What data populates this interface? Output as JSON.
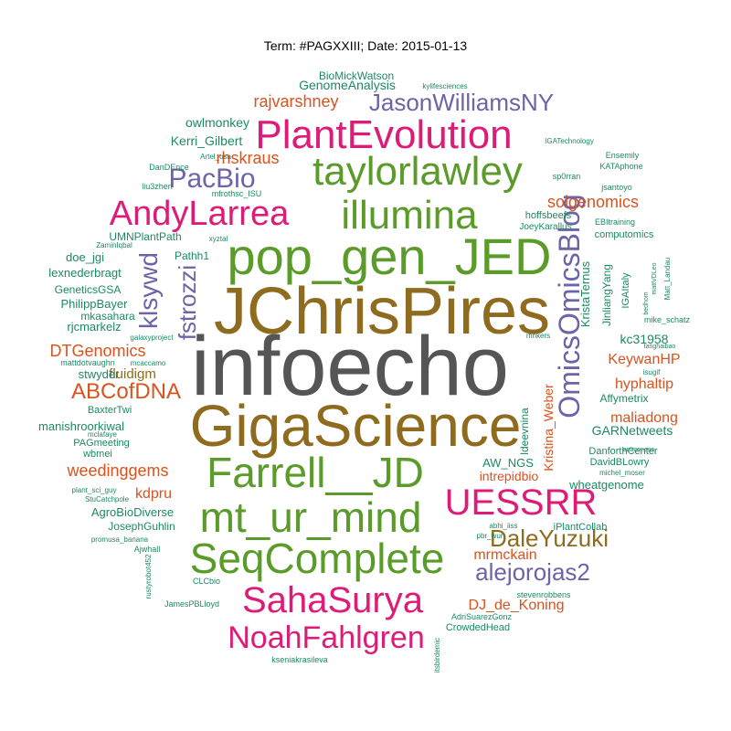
{
  "title": "Term: #PAGXXIII; Date: 2015-01-13",
  "colors": {
    "grey": "#555555",
    "brown": "#8e6b1f",
    "green": "#5a9b2a",
    "pink": "#dd1c77",
    "purple": "#6e62a8",
    "orange": "#d9531e",
    "teal": "#1b8a63"
  },
  "words": [
    {
      "text": "infoecho",
      "color": "grey"
    },
    {
      "text": "JChrisPires",
      "color": "brown"
    },
    {
      "text": "GigaScience",
      "color": "brown"
    },
    {
      "text": "pop_gen_JED",
      "color": "green"
    },
    {
      "text": "Farrell__JD",
      "color": "green"
    },
    {
      "text": "mt_ur_mind",
      "color": "green"
    },
    {
      "text": "SeqComplete",
      "color": "green"
    },
    {
      "text": "taylorlawley",
      "color": "green"
    },
    {
      "text": "illumina",
      "color": "green"
    },
    {
      "text": "PlantEvolution",
      "color": "pink"
    },
    {
      "text": "AndyLarrea",
      "color": "pink"
    },
    {
      "text": "SahaSurya",
      "color": "pink"
    },
    {
      "text": "NoahFahlgren",
      "color": "pink"
    },
    {
      "text": "UESSRR",
      "color": "pink"
    },
    {
      "text": "OmicsOmicsBlog",
      "color": "purple"
    },
    {
      "text": "JasonWilliamsNY",
      "color": "purple"
    },
    {
      "text": "PacBio",
      "color": "purple"
    },
    {
      "text": "klsywd",
      "color": "purple"
    },
    {
      "text": "fstrozzi",
      "color": "purple"
    },
    {
      "text": "alejorojas2",
      "color": "purple"
    },
    {
      "text": "DaleYuzuki",
      "color": "brown"
    },
    {
      "text": "ABCofDNA",
      "color": "orange"
    },
    {
      "text": "DTGenomics",
      "color": "orange"
    },
    {
      "text": "rhskraus",
      "color": "orange"
    },
    {
      "text": "rajvarshney",
      "color": "orange"
    },
    {
      "text": "solgenomics",
      "color": "orange"
    },
    {
      "text": "weedinggems",
      "color": "orange"
    },
    {
      "text": "KeywanHP",
      "color": "orange"
    },
    {
      "text": "hyphaltip",
      "color": "orange"
    },
    {
      "text": "maliadong",
      "color": "orange"
    },
    {
      "text": "mrmckain",
      "color": "orange"
    },
    {
      "text": "DJ_de_Koning",
      "color": "orange"
    },
    {
      "text": "intrepidbio",
      "color": "orange"
    },
    {
      "text": "kdpru",
      "color": "orange"
    },
    {
      "text": "fluidigm",
      "color": "brown"
    },
    {
      "text": "Kristina_Weber",
      "color": "orange"
    },
    {
      "text": "owlmonkey",
      "color": "teal"
    },
    {
      "text": "Kerri_Gilbert",
      "color": "teal"
    },
    {
      "text": "GenomeAnalysis",
      "color": "teal"
    },
    {
      "text": "BioMickWatson",
      "color": "teal"
    },
    {
      "text": "kylifesciences",
      "color": "teal"
    },
    {
      "text": "UMNPlantPath",
      "color": "teal"
    },
    {
      "text": "lexnederbragt",
      "color": "teal"
    },
    {
      "text": "doe_jgi",
      "color": "teal"
    },
    {
      "text": "GeneticsGSA",
      "color": "teal"
    },
    {
      "text": "PhilippBayer",
      "color": "teal"
    },
    {
      "text": "mkasahara",
      "color": "teal"
    },
    {
      "text": "rjcmarkelz",
      "color": "teal"
    },
    {
      "text": "stwyder",
      "color": "teal"
    },
    {
      "text": "BaxterTwi",
      "color": "teal"
    },
    {
      "text": "manishroorkiwal",
      "color": "teal"
    },
    {
      "text": "PAGmeeting",
      "color": "teal"
    },
    {
      "text": "wbmei",
      "color": "teal"
    },
    {
      "text": "AgroBioDiverse",
      "color": "teal"
    },
    {
      "text": "JosephGuhlin",
      "color": "teal"
    },
    {
      "text": "Pathh1",
      "color": "teal"
    },
    {
      "text": "AW_NGS",
      "color": "teal"
    },
    {
      "text": "kc31958",
      "color": "teal"
    },
    {
      "text": "Affymetrix",
      "color": "teal"
    },
    {
      "text": "GARNetweets",
      "color": "teal"
    },
    {
      "text": "wheatgenome",
      "color": "teal"
    },
    {
      "text": "DanforthCenter",
      "color": "teal"
    },
    {
      "text": "DavidBLowry",
      "color": "teal"
    },
    {
      "text": "KristaTernus",
      "color": "teal"
    },
    {
      "text": "JinliangYang",
      "color": "teal"
    },
    {
      "text": "IGAItaly",
      "color": "teal"
    },
    {
      "text": "computomics",
      "color": "teal"
    },
    {
      "text": "hoffsbeefs",
      "color": "teal"
    },
    {
      "text": "JoeyKarallus",
      "color": "teal"
    },
    {
      "text": "EBItraining",
      "color": "teal"
    },
    {
      "text": "Ensemily",
      "color": "teal"
    },
    {
      "text": "KATAphone",
      "color": "teal"
    },
    {
      "text": "sp0rran",
      "color": "teal"
    },
    {
      "text": "jsantoyo",
      "color": "teal"
    },
    {
      "text": "IGATechnology",
      "color": "teal"
    },
    {
      "text": "DanDEnce",
      "color": "teal"
    },
    {
      "text": "mfrothsc_ISU",
      "color": "teal"
    },
    {
      "text": "liu3zhen",
      "color": "teal"
    },
    {
      "text": "Artel_usa",
      "color": "teal"
    },
    {
      "text": "xyztal",
      "color": "teal"
    },
    {
      "text": "ZaminIqbal",
      "color": "teal"
    },
    {
      "text": "galaxyproject",
      "color": "teal"
    },
    {
      "text": "mattdotvaughn",
      "color": "teal"
    },
    {
      "text": "mcaccamo",
      "color": "teal"
    },
    {
      "text": "mclafaye",
      "color": "teal"
    },
    {
      "text": "plant_sci_guy",
      "color": "teal"
    },
    {
      "text": "StuCatchpole",
      "color": "teal"
    },
    {
      "text": "promusa_banana",
      "color": "teal"
    },
    {
      "text": "Ajwhall",
      "color": "teal"
    },
    {
      "text": "rustyrobot452",
      "color": "teal"
    },
    {
      "text": "CLCbio",
      "color": "teal"
    },
    {
      "text": "JamesPBLloyd",
      "color": "teal"
    },
    {
      "text": "ldeevnina",
      "color": "teal"
    },
    {
      "text": "abhi_iiss",
      "color": "teal"
    },
    {
      "text": "iPlantCollab",
      "color": "teal"
    },
    {
      "text": "pbr_wur",
      "color": "teal"
    },
    {
      "text": "stevenrobbens",
      "color": "teal"
    },
    {
      "text": "AdriSuarezGonz",
      "color": "teal"
    },
    {
      "text": "CrowdedHead",
      "color": "teal"
    },
    {
      "text": "itsbirdemic",
      "color": "teal"
    },
    {
      "text": "kseniakrasileva",
      "color": "teal"
    },
    {
      "text": "mike_schatz",
      "color": "teal"
    },
    {
      "text": "tanghaibao",
      "color": "teal"
    },
    {
      "text": "isugif",
      "color": "teal"
    },
    {
      "text": "michel_moser",
      "color": "teal"
    },
    {
      "text": "anaconesa",
      "color": "teal"
    },
    {
      "text": "bedhom",
      "color": "teal"
    },
    {
      "text": "mattVDLeo",
      "color": "teal"
    },
    {
      "text": "Matt_Landau",
      "color": "teal"
    },
    {
      "text": "rfinkers",
      "color": "teal"
    }
  ]
}
